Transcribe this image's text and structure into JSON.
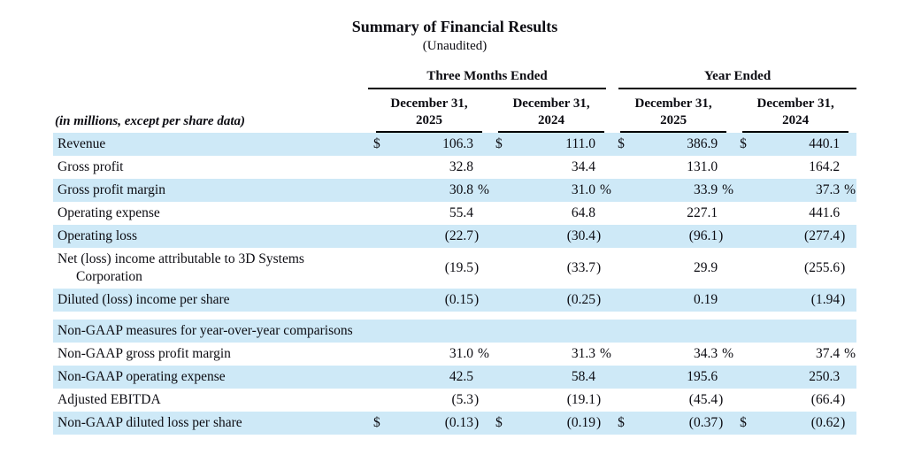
{
  "title": "Summary of Financial Results",
  "subtitle": "(Unaudited)",
  "table": {
    "currency_symbol": "$",
    "row_label_header": "(in millions, except per share data)",
    "col_groups": [
      {
        "label": "Three Months Ended",
        "cols": [
          "December 31, 2025",
          "December 31, 2024"
        ]
      },
      {
        "label": "Year Ended",
        "cols": [
          "December 31, 2025",
          "December 31, 2024"
        ]
      }
    ],
    "rows": [
      {
        "label": "Revenue",
        "dollar": true,
        "values": [
          "106.3",
          "111.0",
          "386.9",
          "440.1"
        ],
        "shaded": true
      },
      {
        "label": "Gross profit",
        "values": [
          "32.8",
          "34.4",
          "131.0",
          "164.2"
        ],
        "shaded": false
      },
      {
        "label": "Gross profit margin",
        "values": [
          "30.8 %",
          "31.0 %",
          "33.9 %",
          "37.3 %"
        ],
        "shaded": true
      },
      {
        "label": "Operating expense",
        "values": [
          "55.4",
          "64.8",
          "227.1",
          "441.6"
        ],
        "shaded": false
      },
      {
        "label": "Operating loss",
        "values": [
          "(22.7)",
          "(30.4)",
          "(96.1)",
          "(277.4)"
        ],
        "shaded": true
      },
      {
        "label": "Net (loss) income attributable to 3D Systems Corporation",
        "hanging": true,
        "values": [
          "(19.5)",
          "(33.7)",
          "29.9",
          "(255.6)"
        ],
        "shaded": false
      },
      {
        "label": "Diluted (loss) income per share",
        "values": [
          "(0.15)",
          "(0.25)",
          "0.19",
          "(1.94)"
        ],
        "shaded": true
      },
      {
        "type": "spacer"
      },
      {
        "type": "section",
        "label": "Non-GAAP measures for year-over-year comparisons",
        "shaded": true
      },
      {
        "label": "Non-GAAP gross profit margin",
        "values": [
          "31.0 %",
          "31.3 %",
          "34.3 %",
          "37.4 %"
        ],
        "shaded": false
      },
      {
        "label": "Non-GAAP operating expense",
        "values": [
          "42.5",
          "58.4",
          "195.6",
          "250.3"
        ],
        "shaded": true
      },
      {
        "label": "Adjusted EBITDA",
        "values": [
          "(5.3)",
          "(19.1)",
          "(45.4)",
          "(66.4)"
        ],
        "shaded": false
      },
      {
        "label": "Non-GAAP diluted loss per share",
        "dollar": true,
        "values": [
          "(0.13)",
          "(0.19)",
          "(0.37)",
          "(0.62)"
        ],
        "shaded": true
      }
    ]
  }
}
